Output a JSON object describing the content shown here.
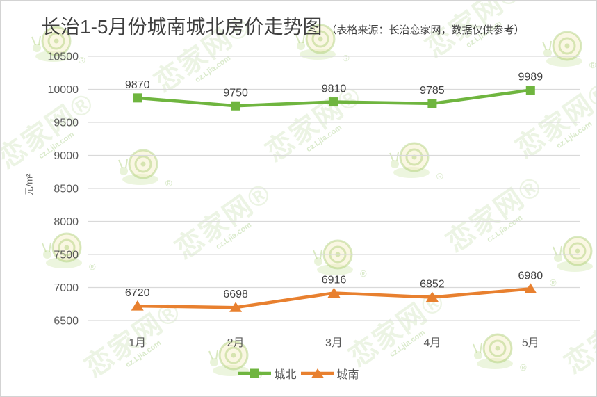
{
  "title": "长治1-5月份城南城北房价走势图",
  "subtitle": "（表格来源：长治恋家网，数据仅供参考）",
  "watermark": {
    "brand": "恋家网",
    "url": "cz.Ljia.com",
    "reg": "®"
  },
  "chart_data": {
    "type": "line",
    "title": "长治1-5月份城南城北房价走势图",
    "categories": [
      "1月",
      "2月",
      "3月",
      "4月",
      "5月"
    ],
    "series": [
      {
        "name": "城北",
        "color": "#6FB53F",
        "marker": "square",
        "values": [
          9870,
          9750,
          9810,
          9785,
          9989
        ]
      },
      {
        "name": "城南",
        "color": "#E8802F",
        "marker": "triangle",
        "values": [
          6720,
          6698,
          6916,
          6852,
          6980
        ]
      }
    ],
    "xlabel": "",
    "ylabel": "元/m²",
    "ylim": [
      6500,
      10500
    ],
    "ytick_step": 500,
    "grid": true,
    "legend_position": "bottom",
    "colors": {
      "gridline": "#D9D9D9",
      "axis_text": "#595959",
      "data_label_text": "#404040",
      "title_text": "#3F3F3F"
    }
  }
}
